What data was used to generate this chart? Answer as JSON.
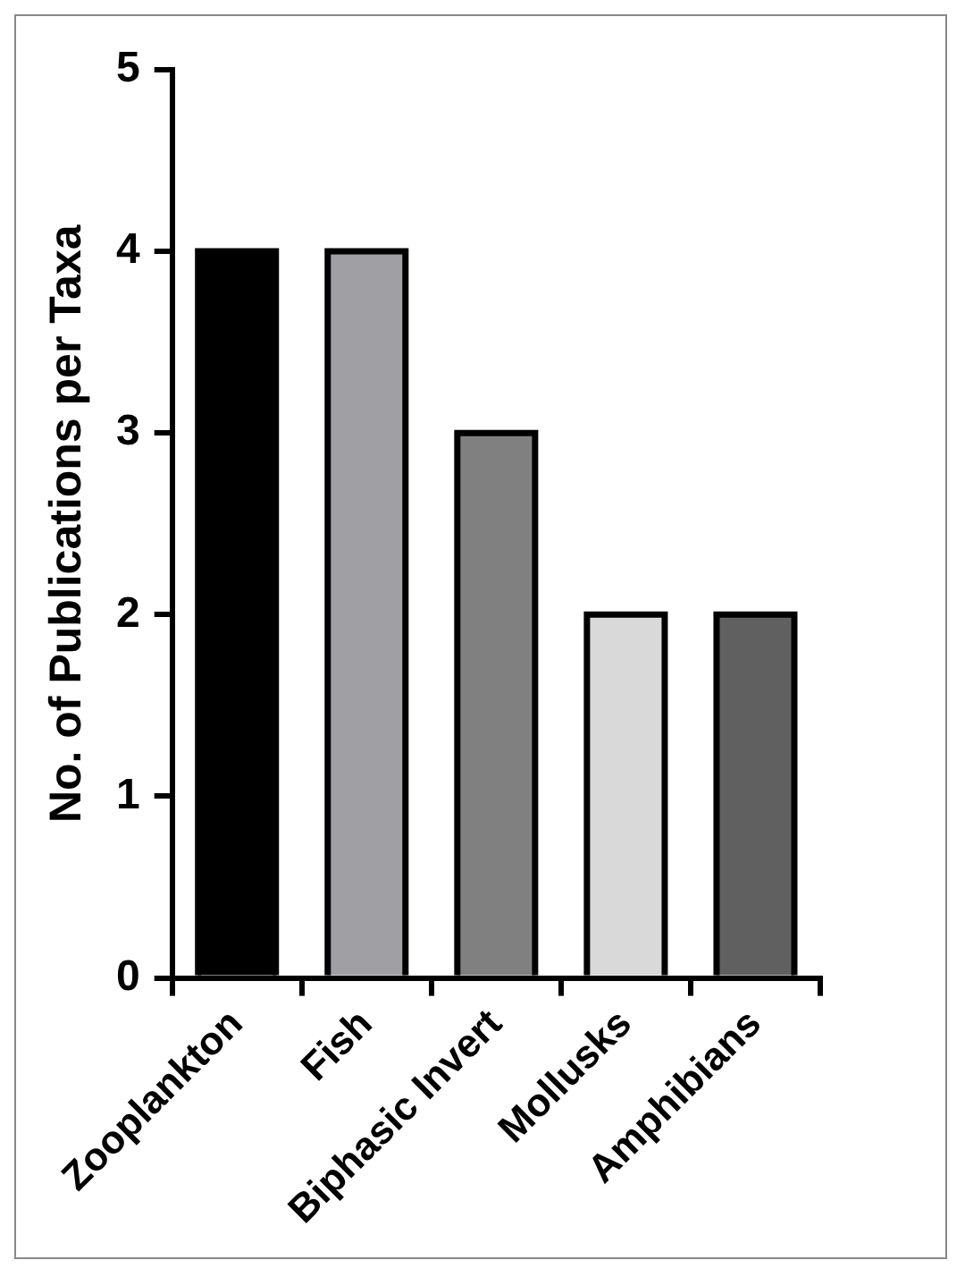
{
  "chart_data": {
    "type": "bar",
    "ylabel": "No. of Publications per Taxa",
    "categories": [
      "Zooplankton",
      "Fish",
      "Biphasic Invert",
      "Mollusks",
      "Amphibians"
    ],
    "values": [
      4,
      4,
      3,
      2,
      2
    ],
    "colors": [
      "#000000",
      "#a0a0a4",
      "#808080",
      "#d9d9d9",
      "#606060"
    ],
    "ylim": [
      0,
      5
    ],
    "yticks": [
      0,
      1,
      2,
      3,
      4,
      5
    ],
    "grid": false,
    "legend": false
  }
}
